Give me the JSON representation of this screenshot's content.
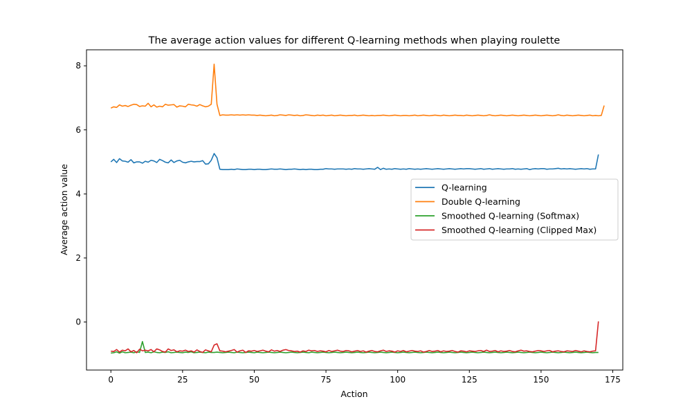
{
  "chart_data": {
    "type": "line",
    "title": "The average action values for different Q-learning methods when playing roulette",
    "xlabel": "Action",
    "ylabel": "Average action value",
    "xlim": [
      -8.5,
      178.5
    ],
    "ylim": [
      -1.5,
      8.5
    ],
    "xticks": [
      0,
      25,
      50,
      75,
      100,
      125,
      150,
      175
    ],
    "yticks": [
      0,
      2,
      4,
      6,
      8
    ],
    "grid": false,
    "legend_position": "center-right",
    "series": [
      {
        "name": "Q-learning",
        "color": "#1f77b4",
        "values": [
          5.0,
          5.08,
          4.98,
          5.1,
          5.03,
          5.02,
          4.99,
          5.07,
          4.97,
          5.0,
          5.0,
          4.96,
          5.02,
          4.99,
          5.05,
          5.03,
          4.98,
          5.08,
          5.04,
          4.99,
          4.97,
          5.06,
          4.98,
          5.03,
          5.05,
          4.99,
          4.97,
          5.0,
          5.02,
          5.0,
          5.01,
          5.01,
          5.04,
          4.93,
          4.94,
          5.05,
          5.26,
          5.13,
          4.77,
          4.76,
          4.76,
          4.76,
          4.77,
          4.76,
          4.78,
          4.77,
          4.76,
          4.76,
          4.77,
          4.77,
          4.76,
          4.77,
          4.77,
          4.76,
          4.76,
          4.77,
          4.78,
          4.77,
          4.77,
          4.78,
          4.77,
          4.76,
          4.77,
          4.77,
          4.78,
          4.77,
          4.76,
          4.77,
          4.76,
          4.77,
          4.77,
          4.76,
          4.76,
          4.77,
          4.77,
          4.79,
          4.78,
          4.78,
          4.77,
          4.78,
          4.78,
          4.78,
          4.77,
          4.78,
          4.77,
          4.79,
          4.78,
          4.78,
          4.77,
          4.78,
          4.79,
          4.78,
          4.77,
          4.83,
          4.76,
          4.8,
          4.77,
          4.78,
          4.77,
          4.79,
          4.78,
          4.77,
          4.78,
          4.77,
          4.79,
          4.78,
          4.77,
          4.78,
          4.77,
          4.78,
          4.79,
          4.78,
          4.77,
          4.78,
          4.79,
          4.78,
          4.77,
          4.78,
          4.79,
          4.78,
          4.77,
          4.78,
          4.79,
          4.78,
          4.79,
          4.79,
          4.78,
          4.77,
          4.78,
          4.79,
          4.77,
          4.78,
          4.79,
          4.77,
          4.78,
          4.79,
          4.78,
          4.77,
          4.78,
          4.78,
          4.79,
          4.77,
          4.78,
          4.77,
          4.78,
          4.79,
          4.76,
          4.78,
          4.79,
          4.78,
          4.79,
          4.79,
          4.77,
          4.78,
          4.78,
          4.79,
          4.8,
          4.78,
          4.79,
          4.78,
          4.79,
          4.78,
          4.77,
          4.78,
          4.79,
          4.78,
          4.79,
          4.77,
          4.78,
          4.78,
          5.23
        ]
      },
      {
        "name": "Double Q-learning",
        "color": "#ff7f0e",
        "values": [
          6.68,
          6.72,
          6.7,
          6.78,
          6.74,
          6.76,
          6.73,
          6.77,
          6.8,
          6.79,
          6.73,
          6.75,
          6.74,
          6.83,
          6.72,
          6.78,
          6.71,
          6.74,
          6.72,
          6.8,
          6.77,
          6.78,
          6.79,
          6.71,
          6.75,
          6.74,
          6.72,
          6.8,
          6.78,
          6.77,
          6.74,
          6.79,
          6.75,
          6.72,
          6.74,
          6.8,
          8.05,
          6.8,
          6.45,
          6.47,
          6.46,
          6.46,
          6.47,
          6.46,
          6.47,
          6.46,
          6.47,
          6.46,
          6.47,
          6.46,
          6.46,
          6.45,
          6.46,
          6.45,
          6.44,
          6.45,
          6.46,
          6.44,
          6.45,
          6.47,
          6.46,
          6.45,
          6.47,
          6.46,
          6.45,
          6.46,
          6.44,
          6.45,
          6.47,
          6.46,
          6.45,
          6.44,
          6.46,
          6.45,
          6.46,
          6.44,
          6.45,
          6.46,
          6.44,
          6.45,
          6.46,
          6.45,
          6.44,
          6.45,
          6.45,
          6.46,
          6.44,
          6.45,
          6.46,
          6.45,
          6.44,
          6.45,
          6.44,
          6.45,
          6.45,
          6.46,
          6.45,
          6.44,
          6.45,
          6.46,
          6.45,
          6.44,
          6.45,
          6.45,
          6.44,
          6.45,
          6.46,
          6.44,
          6.45,
          6.46,
          6.45,
          6.44,
          6.45,
          6.46,
          6.45,
          6.44,
          6.46,
          6.45,
          6.44,
          6.45,
          6.46,
          6.45,
          6.45,
          6.44,
          6.46,
          6.45,
          6.44,
          6.45,
          6.46,
          6.45,
          6.44,
          6.45,
          6.47,
          6.45,
          6.44,
          6.45,
          6.46,
          6.45,
          6.44,
          6.45,
          6.46,
          6.45,
          6.44,
          6.45,
          6.46,
          6.45,
          6.44,
          6.45,
          6.46,
          6.45,
          6.44,
          6.45,
          6.46,
          6.45,
          6.44,
          6.45,
          6.47,
          6.45,
          6.44,
          6.46,
          6.45,
          6.44,
          6.45,
          6.46,
          6.45,
          6.44,
          6.45,
          6.46,
          6.44,
          6.45,
          6.44,
          6.45,
          6.76
        ]
      },
      {
        "name": "Smoothed Q-learning (Softmax)",
        "color": "#2ca02c",
        "values": [
          -0.97,
          -0.96,
          -0.93,
          -0.97,
          -0.93,
          -0.96,
          -0.95,
          -0.94,
          -0.96,
          -0.93,
          -0.95,
          -0.61,
          -0.95,
          -0.94,
          -0.96,
          -0.93,
          -0.95,
          -0.96,
          -0.94,
          -0.95,
          -0.93,
          -0.96,
          -0.95,
          -0.94,
          -0.95,
          -0.96,
          -0.94,
          -0.95,
          -0.93,
          -0.96,
          -0.95,
          -0.94,
          -0.95,
          -0.96,
          -0.94,
          -0.95,
          -0.95,
          -0.94,
          -0.95,
          -0.96,
          -0.95,
          -0.94,
          -0.95,
          -0.96,
          -0.94,
          -0.95,
          -0.96,
          -0.95,
          -0.94,
          -0.95,
          -0.96,
          -0.94,
          -0.95,
          -0.96,
          -0.95,
          -0.94,
          -0.95,
          -0.96,
          -0.95,
          -0.94,
          -0.95,
          -0.96,
          -0.95,
          -0.94,
          -0.95,
          -0.96,
          -0.95,
          -0.94,
          -0.95,
          -0.96,
          -0.94,
          -0.95,
          -0.96,
          -0.95,
          -0.94,
          -0.95,
          -0.96,
          -0.95,
          -0.94,
          -0.95,
          -0.96,
          -0.95,
          -0.94,
          -0.95,
          -0.96,
          -0.95,
          -0.94,
          -0.95,
          -0.96,
          -0.95,
          -0.94,
          -0.95,
          -0.96,
          -0.95,
          -0.94,
          -0.95,
          -0.96,
          -0.95,
          -0.94,
          -0.95,
          -0.96,
          -0.95,
          -0.94,
          -0.95,
          -0.96,
          -0.95,
          -0.94,
          -0.95,
          -0.96,
          -0.95,
          -0.94,
          -0.95,
          -0.96,
          -0.95,
          -0.94,
          -0.95,
          -0.96,
          -0.95,
          -0.94,
          -0.95,
          -0.96,
          -0.95,
          -0.94,
          -0.95,
          -0.96,
          -0.95,
          -0.94,
          -0.95,
          -0.96,
          -0.95,
          -0.94,
          -0.95,
          -0.96,
          -0.95,
          -0.94,
          -0.95,
          -0.96,
          -0.95,
          -0.94,
          -0.95,
          -0.96,
          -0.95,
          -0.94,
          -0.95,
          -0.96,
          -0.95,
          -0.94,
          -0.95,
          -0.96,
          -0.95,
          -0.94,
          -0.95,
          -0.96,
          -0.95,
          -0.94,
          -0.95,
          -0.96,
          -0.95,
          -0.94,
          -0.95,
          -0.96,
          -0.95,
          -0.94,
          -0.95,
          -0.96,
          -0.95,
          -0.94,
          -0.95,
          -0.96,
          -0.95,
          -0.95
        ]
      },
      {
        "name": "Smoothed Q-learning (Clipped Max)",
        "color": "#d62728",
        "values": [
          -0.91,
          -0.92,
          -0.86,
          -0.94,
          -0.88,
          -0.9,
          -0.84,
          -0.93,
          -0.89,
          -0.96,
          -0.85,
          -0.9,
          -0.88,
          -0.9,
          -0.86,
          -0.93,
          -0.84,
          -0.87,
          -0.92,
          -0.94,
          -0.84,
          -0.89,
          -0.87,
          -0.93,
          -0.9,
          -0.91,
          -0.88,
          -0.92,
          -0.9,
          -0.94,
          -0.87,
          -0.92,
          -0.95,
          -0.87,
          -0.9,
          -0.93,
          -0.72,
          -0.68,
          -0.9,
          -0.91,
          -0.93,
          -0.91,
          -0.89,
          -0.86,
          -0.94,
          -0.9,
          -0.88,
          -0.95,
          -0.9,
          -0.91,
          -0.89,
          -0.92,
          -0.9,
          -0.88,
          -0.91,
          -0.93,
          -0.87,
          -0.91,
          -0.89,
          -0.92,
          -0.88,
          -0.86,
          -0.89,
          -0.9,
          -0.92,
          -0.91,
          -0.94,
          -0.9,
          -0.92,
          -0.88,
          -0.9,
          -0.89,
          -0.92,
          -0.9,
          -0.91,
          -0.93,
          -0.89,
          -0.92,
          -0.9,
          -0.88,
          -0.91,
          -0.92,
          -0.89,
          -0.9,
          -0.93,
          -0.91,
          -0.89,
          -0.92,
          -0.9,
          -0.94,
          -0.91,
          -0.89,
          -0.92,
          -0.93,
          -0.9,
          -0.88,
          -0.92,
          -0.9,
          -0.91,
          -0.94,
          -0.9,
          -0.92,
          -0.89,
          -0.93,
          -0.91,
          -0.89,
          -0.91,
          -0.92,
          -0.9,
          -0.94,
          -0.92,
          -0.89,
          -0.92,
          -0.91,
          -0.89,
          -0.93,
          -0.9,
          -0.92,
          -0.91,
          -0.89,
          -0.92,
          -0.94,
          -0.9,
          -0.91,
          -0.93,
          -0.9,
          -0.91,
          -0.92,
          -0.9,
          -0.89,
          -0.92,
          -0.88,
          -0.92,
          -0.91,
          -0.89,
          -0.93,
          -0.9,
          -0.92,
          -0.91,
          -0.89,
          -0.92,
          -0.93,
          -0.9,
          -0.88,
          -0.91,
          -0.9,
          -0.92,
          -0.93,
          -0.91,
          -0.89,
          -0.9,
          -0.92,
          -0.9,
          -0.89,
          -0.93,
          -0.91,
          -0.9,
          -0.92,
          -0.93,
          -0.9,
          -0.91,
          -0.92,
          -0.89,
          -0.91,
          -0.93,
          -0.9,
          -0.92,
          -0.93,
          -0.91,
          -0.9,
          0.02
        ]
      }
    ]
  }
}
